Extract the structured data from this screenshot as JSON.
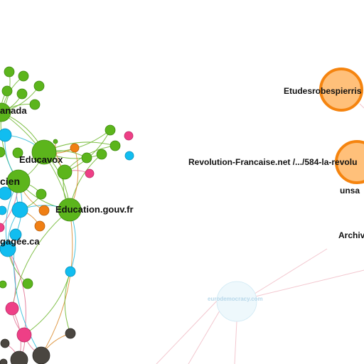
{
  "graph": {
    "colors": {
      "green": "#5cb51c",
      "green_stroke": "#3f8a10",
      "blue": "#11bdf0",
      "blue_stroke": "#0a8fb8",
      "pink": "#ee3f86",
      "pink_stroke": "#b82a64",
      "orange": "#f07f14",
      "orange_stroke": "#b85e0a",
      "dark": "#4a4640",
      "dark_stroke": "#2c2925",
      "peach_fill": "#ffc07a",
      "peach_stroke": "#f5840f",
      "faint_fill": "#eef8fc",
      "faint_stroke": "#cfe9f4",
      "edge_green": "#6bb52a",
      "edge_blue": "#29b8d8",
      "edge_orange": "#d98a2a",
      "edge_pink": "#e07090",
      "edge_faint": "#f3c7cf"
    },
    "labels": {
      "canada": "anada",
      "educavox": "Educavox",
      "cien": "cien",
      "education_gouv": "Education.gouv.fr",
      "gagee": "gagée.ca",
      "etudesrobespierristes": "Etudesrobespierris",
      "revolution_francaise": "Revolution-Francaise.net /.../584-la-revolu",
      "unsa": "unsa",
      "archiv": "Archiv",
      "faint_site": "eurodemocracy.com"
    }
  }
}
